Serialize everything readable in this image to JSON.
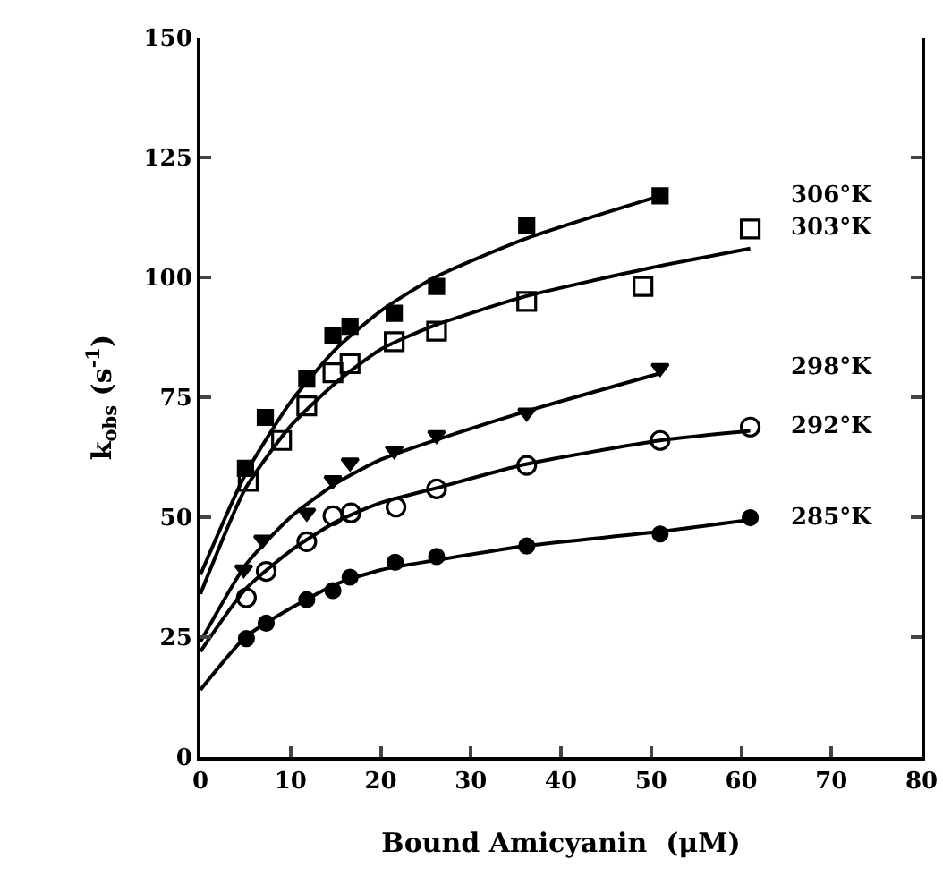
{
  "chart_data": {
    "type": "scatter",
    "xlabel": "Bound Amicyanin  (μM)",
    "ylabel": "k$_{obs}$ (s$^{-1}$)",
    "xlim": [
      0,
      80
    ],
    "xticks": [
      0,
      10,
      20,
      30,
      40,
      50,
      60,
      70,
      80
    ],
    "ylim": [
      0,
      150
    ],
    "yticks": [
      0,
      25,
      50,
      75,
      100,
      125,
      150
    ],
    "grid": false,
    "legend": false,
    "series": [
      {
        "name": "306°K",
        "color": "#000000",
        "marker": "square",
        "x": [
          5.0,
          7.2,
          11.8,
          14.7,
          16.6,
          21.5,
          26.2,
          36.2,
          51.0
        ],
        "values": [
          60.2,
          70.8,
          78.8,
          87.9,
          89.8,
          92.5,
          98.1,
          110.9,
          117.0
        ]
      },
      {
        "type": "line",
        "color": "#000000",
        "marker": "none",
        "x": [
          0,
          5,
          10,
          15,
          20,
          26,
          36,
          51
        ],
        "values": [
          38,
          59,
          74,
          85,
          93,
          100,
          108,
          117
        ]
      },
      {
        "name": "303°K",
        "color": "#000000",
        "marker": "square-open",
        "x": [
          5.3,
          9.0,
          11.8,
          14.7,
          16.6,
          21.5,
          26.2,
          36.2,
          49.1,
          61.0
        ],
        "values": [
          57.5,
          66.0,
          73.2,
          80.1,
          82.0,
          86.6,
          88.8,
          95.0,
          98.1,
          110.1
        ]
      },
      {
        "type": "line",
        "color": "#000000",
        "marker": "none",
        "x": [
          0,
          5,
          10,
          15,
          20,
          26,
          36,
          50,
          61
        ],
        "values": [
          34,
          56,
          69,
          78,
          85,
          90,
          96,
          102,
          106
        ]
      },
      {
        "name": "298°K",
        "color": "#000000",
        "marker": "triangle-down",
        "x": [
          4.8,
          6.9,
          11.8,
          14.7,
          16.6,
          21.5,
          26.2,
          36.2,
          51.0
        ],
        "values": [
          39.1,
          45.3,
          50.9,
          57.7,
          61.4,
          63.9,
          67.1,
          71.8,
          81.1
        ]
      },
      {
        "type": "line",
        "color": "#000000",
        "marker": "none",
        "x": [
          0,
          5,
          10,
          15,
          20,
          26,
          36,
          51
        ],
        "values": [
          24,
          40,
          50,
          57,
          62,
          66,
          72,
          80
        ]
      },
      {
        "name": "292°K",
        "color": "#000000",
        "marker": "circle-open",
        "x": [
          5.1,
          7.3,
          11.8,
          14.7,
          16.7,
          21.7,
          26.2,
          36.2,
          51.0,
          61.0
        ],
        "values": [
          33.2,
          38.7,
          44.9,
          50.3,
          50.9,
          52.1,
          55.9,
          60.8,
          66.0,
          68.8
        ]
      },
      {
        "type": "line",
        "color": "#000000",
        "marker": "none",
        "x": [
          0,
          5,
          10,
          15,
          20,
          26,
          36,
          51,
          61
        ],
        "values": [
          22,
          35,
          43,
          49,
          53,
          56,
          61,
          66,
          68
        ]
      },
      {
        "name": "285°K",
        "color": "#000000",
        "marker": "circle",
        "x": [
          5.1,
          7.3,
          11.8,
          14.7,
          16.6,
          21.6,
          26.2,
          36.2,
          51.0,
          61.0
        ],
        "values": [
          24.7,
          27.9,
          32.8,
          34.7,
          37.5,
          40.6,
          41.8,
          44.0,
          46.5,
          49.9
        ]
      },
      {
        "type": "line",
        "color": "#000000",
        "marker": "none",
        "x": [
          0,
          5,
          10,
          15,
          20,
          26,
          36,
          51,
          61
        ],
        "values": [
          14,
          25,
          31,
          36,
          39,
          41,
          44,
          47,
          49.5
        ]
      }
    ]
  }
}
